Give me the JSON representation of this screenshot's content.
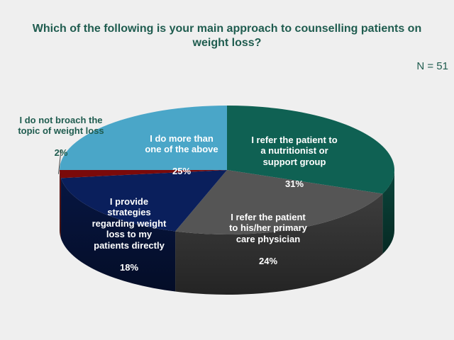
{
  "chart_data": {
    "type": "pie",
    "title": "Which of the following is your main approach to counselling patients on weight loss?",
    "annotation": "N = 51",
    "slices": [
      {
        "label": "I refer the patient to a nutritionist or support group",
        "value": 31,
        "value_label": "31%",
        "color": "#0f6153"
      },
      {
        "label": "I refer the patient to his/her primary care physician",
        "value": 24,
        "value_label": "24%",
        "color": "#555555"
      },
      {
        "label": "I provide strategies regarding weight loss to my patients directly",
        "value": 18,
        "value_label": "18%",
        "color": "#0a1f5c"
      },
      {
        "label": "I do not broach the topic of weight loss",
        "value": 2,
        "value_label": "2%",
        "color": "#7a0a0a"
      },
      {
        "label": "I do more than one of the above",
        "value": 25,
        "value_label": "25%",
        "color": "#4aa6c8"
      }
    ]
  }
}
